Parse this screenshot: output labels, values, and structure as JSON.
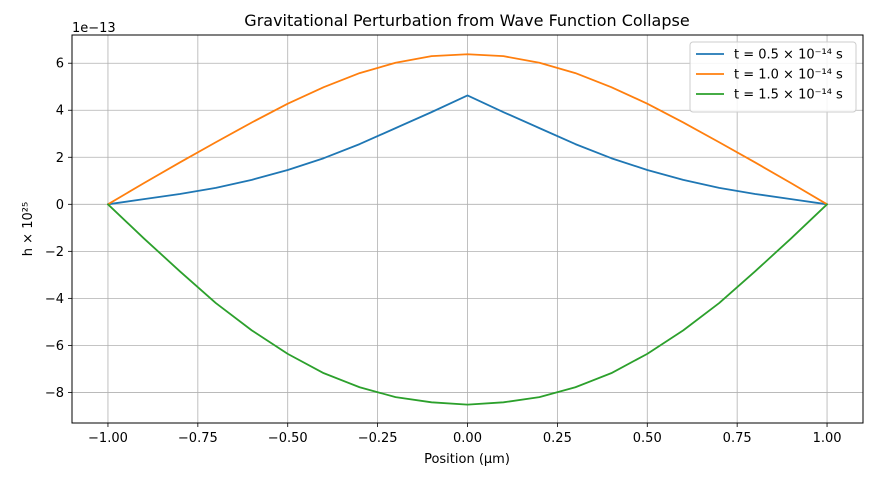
{
  "chart_data": {
    "type": "line",
    "title": "Gravitational Perturbation from Wave Function Collapse",
    "xlabel": "Position (μm)",
    "ylabel": "h × 10²⁵",
    "y_offset_label": "1e−13",
    "y_scale": 1e-13,
    "xlim": [
      -1.1,
      1.1
    ],
    "ylim": [
      -9.3,
      7.2
    ],
    "xticks": [
      -1.0,
      -0.75,
      -0.5,
      -0.25,
      0.0,
      0.25,
      0.5,
      0.75,
      1.0
    ],
    "xtick_labels": [
      "−1.00",
      "−0.75",
      "−0.50",
      "−0.25",
      "0.00",
      "0.25",
      "0.50",
      "0.75",
      "1.00"
    ],
    "yticks": [
      -8,
      -6,
      -4,
      -2,
      0,
      2,
      4,
      6
    ],
    "ytick_labels": [
      "−8",
      "−6",
      "−4",
      "−2",
      "0",
      "2",
      "4",
      "6"
    ],
    "grid": true,
    "legend_position": "top-right",
    "x": [
      -1.0,
      -0.9,
      -0.8,
      -0.7,
      -0.6,
      -0.5,
      -0.4,
      -0.3,
      -0.2,
      -0.1,
      0.0,
      0.1,
      0.2,
      0.3,
      0.4,
      0.5,
      0.6,
      0.7,
      0.8,
      0.9,
      1.0
    ],
    "series": [
      {
        "name": "t = 0.5 × 10⁻¹⁴ s",
        "color": "#1f77b4",
        "values": [
          0.0,
          0.22,
          0.44,
          0.7,
          1.04,
          1.46,
          1.96,
          2.56,
          3.24,
          3.92,
          4.63,
          3.92,
          3.24,
          2.56,
          1.96,
          1.46,
          1.04,
          0.7,
          0.44,
          0.22,
          0.0
        ]
      },
      {
        "name": "t = 1.0 × 10⁻¹⁴ s",
        "color": "#ff7f0e",
        "values": [
          0.0,
          0.9,
          1.78,
          2.64,
          3.48,
          4.28,
          4.98,
          5.58,
          6.02,
          6.3,
          6.38,
          6.3,
          6.02,
          5.58,
          4.98,
          4.28,
          3.48,
          2.64,
          1.78,
          0.9,
          0.0
        ]
      },
      {
        "name": "t = 1.5 × 10⁻¹⁴ s",
        "color": "#2ca02c",
        "values": [
          0.0,
          -1.45,
          -2.85,
          -4.2,
          -5.36,
          -6.36,
          -7.18,
          -7.78,
          -8.2,
          -8.42,
          -8.52,
          -8.42,
          -8.2,
          -7.78,
          -7.18,
          -6.36,
          -5.36,
          -4.2,
          -2.85,
          -1.45,
          0.0
        ]
      }
    ]
  }
}
